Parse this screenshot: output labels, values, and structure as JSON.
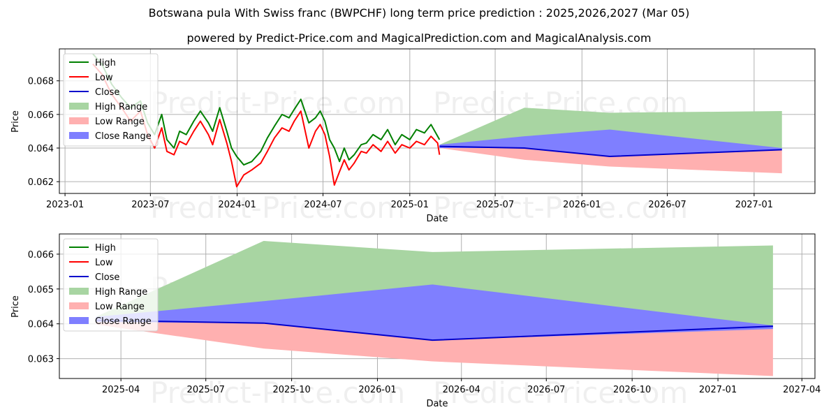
{
  "header": {
    "title": "Botswana pula With Swiss franc (BWPCHF) long term price prediction : 2025,2026,2027 (Mar 05)",
    "subtitle": "powered by Predict-Price.com and MagicalPrediction.com and MagicalAnalysis.com"
  },
  "watermark": "Predict-Price.com",
  "colors": {
    "high": "#008000",
    "low": "#ff0000",
    "close": "#0000cc",
    "high_range": "#a8d5a2",
    "low_range": "#ffb0b0",
    "close_range": "#7f7fff",
    "grid": "#b0b0b0"
  },
  "legend": {
    "items": [
      {
        "label": "High",
        "kind": "line",
        "color": "#008000"
      },
      {
        "label": "Low",
        "kind": "line",
        "color": "#ff0000"
      },
      {
        "label": "Close",
        "kind": "line",
        "color": "#0000cc"
      },
      {
        "label": "High Range",
        "kind": "patch",
        "color": "#a8d5a2"
      },
      {
        "label": "Low Range",
        "kind": "patch",
        "color": "#ffb0b0"
      },
      {
        "label": "Close Range",
        "kind": "patch",
        "color": "#7f7fff"
      }
    ]
  },
  "chart_data": [
    {
      "type": "line",
      "title": "Botswana pula With Swiss franc (BWPCHF) long term price prediction : 2025,2026,2027 (Mar 05)",
      "xlabel": "Date",
      "ylabel": "Price",
      "ylim": [
        0.0613,
        0.0699
      ],
      "xlim": [
        "2022-12-20",
        "2027-05-10"
      ],
      "grid": true,
      "legend_position": "upper left",
      "x_ticks": [
        "2023-01",
        "2023-07",
        "2024-01",
        "2024-07",
        "2025-01",
        "2025-07",
        "2026-01",
        "2026-07",
        "2027-01"
      ],
      "y_ticks": [
        "0.062",
        "0.064",
        "0.066",
        "0.068"
      ],
      "history": {
        "x": [
          "2023-03-01",
          "2023-03-20",
          "2023-04-10",
          "2023-05-01",
          "2023-05-20",
          "2023-06-10",
          "2023-06-25",
          "2023-07-10",
          "2023-07-25",
          "2023-08-05",
          "2023-08-20",
          "2023-09-01",
          "2023-09-15",
          "2023-10-01",
          "2023-10-15",
          "2023-11-01",
          "2023-11-10",
          "2023-11-25",
          "2023-12-10",
          "2023-12-20",
          "2023-12-31",
          "2024-01-15",
          "2024-02-01",
          "2024-02-20",
          "2024-03-05",
          "2024-03-20",
          "2024-04-05",
          "2024-04-20",
          "2024-05-01",
          "2024-05-15",
          "2024-06-01",
          "2024-06-15",
          "2024-06-25",
          "2024-07-05",
          "2024-07-15",
          "2024-07-25",
          "2024-08-05",
          "2024-08-15",
          "2024-08-25",
          "2024-09-05",
          "2024-09-20",
          "2024-10-01",
          "2024-10-15",
          "2024-11-01",
          "2024-11-15",
          "2024-12-01",
          "2024-12-15",
          "2025-01-01",
          "2025-01-15",
          "2025-02-01",
          "2025-02-15",
          "2025-03-01",
          "2025-03-05"
        ],
        "high": [
          0.0696,
          0.069,
          0.0678,
          0.067,
          0.0664,
          0.0668,
          0.0655,
          0.0648,
          0.066,
          0.0645,
          0.064,
          0.065,
          0.0648,
          0.0656,
          0.0662,
          0.0655,
          0.065,
          0.0664,
          0.065,
          0.064,
          0.0635,
          0.063,
          0.0632,
          0.0638,
          0.0646,
          0.0653,
          0.066,
          0.0658,
          0.0663,
          0.0669,
          0.0655,
          0.0658,
          0.0662,
          0.0656,
          0.0645,
          0.064,
          0.0632,
          0.064,
          0.0633,
          0.0636,
          0.0642,
          0.0643,
          0.0648,
          0.0645,
          0.0651,
          0.0642,
          0.0648,
          0.0645,
          0.0651,
          0.0649,
          0.0654,
          0.0647,
          0.0645
        ],
        "low": [
          0.069,
          0.0684,
          0.0672,
          0.0664,
          0.0656,
          0.0662,
          0.0648,
          0.064,
          0.0652,
          0.0638,
          0.0636,
          0.0644,
          0.0642,
          0.065,
          0.0656,
          0.0648,
          0.0642,
          0.0657,
          0.0643,
          0.0632,
          0.0617,
          0.0624,
          0.0627,
          0.0631,
          0.0638,
          0.0646,
          0.0652,
          0.065,
          0.0656,
          0.0662,
          0.064,
          0.065,
          0.0654,
          0.0648,
          0.0635,
          0.0618,
          0.0626,
          0.0633,
          0.0627,
          0.0631,
          0.0638,
          0.0637,
          0.0642,
          0.0638,
          0.0644,
          0.0637,
          0.0642,
          0.064,
          0.0644,
          0.0642,
          0.0647,
          0.0643,
          0.0636
        ]
      },
      "forecast": {
        "x": [
          "2025-03-05",
          "2025-09-01",
          "2026-03-01",
          "2027-03-01"
        ],
        "high_range_top": [
          0.0642,
          0.0664,
          0.0661,
          0.0662
        ],
        "low_range_bottom": [
          0.064,
          0.0633,
          0.0629,
          0.0625
        ],
        "close_range_top": [
          0.0642,
          0.0647,
          0.0651,
          0.064
        ],
        "close_range_bottom": [
          0.064,
          0.064,
          0.0635,
          0.0639
        ],
        "close": [
          0.0641,
          0.064,
          0.0635,
          0.0639
        ]
      }
    },
    {
      "type": "area",
      "xlabel": "Date",
      "ylabel": "Price",
      "ylim": [
        0.06243,
        0.06658
      ],
      "xlim": [
        "2025-01-25",
        "2027-04-15"
      ],
      "grid": true,
      "legend_position": "upper left",
      "x_ticks": [
        "2025-04",
        "2025-07",
        "2025-10",
        "2026-01",
        "2026-04",
        "2026-07",
        "2026-10",
        "2027-01",
        "2027-04"
      ],
      "y_ticks": [
        "0.063",
        "0.064",
        "0.065",
        "0.066"
      ],
      "forecast": {
        "x": [
          "2025-03-05",
          "2025-09-01",
          "2026-03-01",
          "2027-03-01"
        ],
        "high_range_top": [
          0.0642,
          0.06638,
          0.06606,
          0.06625
        ],
        "high_range_bottom": [
          0.0641,
          0.06402,
          0.06353,
          0.06393
        ],
        "low_range_top": [
          0.0641,
          0.06402,
          0.06353,
          0.06393
        ],
        "low_range_bottom": [
          0.06398,
          0.06329,
          0.06292,
          0.0625
        ],
        "close_range_top": [
          0.0642,
          0.06465,
          0.06513,
          0.06395
        ],
        "close_range_bottom": [
          0.06405,
          0.06402,
          0.06353,
          0.06385
        ],
        "close": [
          0.0641,
          0.06402,
          0.06353,
          0.06393
        ]
      }
    }
  ]
}
